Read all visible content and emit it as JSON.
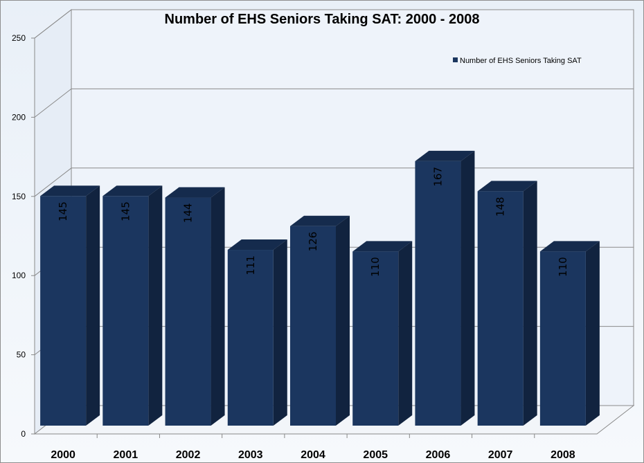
{
  "chart_data": {
    "type": "bar",
    "title": "Number of EHS Seniors Taking SAT: 2000 - 2008",
    "categories": [
      "2000",
      "2001",
      "2002",
      "2003",
      "2004",
      "2005",
      "2006",
      "2007",
      "2008"
    ],
    "series": [
      {
        "name": "Number of EHS Seniors Taking SAT",
        "values": [
          145,
          145,
          144,
          111,
          126,
          110,
          167,
          148,
          110
        ],
        "color": "#1b365f"
      }
    ],
    "data_labels": [
      "145",
      "145",
      "144",
      "111",
      "126",
      "110",
      "167",
      "148",
      "110"
    ],
    "yticks": [
      "0",
      "50",
      "100",
      "150",
      "200",
      "250"
    ],
    "ylim": [
      0,
      250
    ],
    "grid": true,
    "legend": "top-right",
    "style": "3d-column",
    "colors": {
      "bar_front": "#1b365f",
      "bar_side": "#11233f",
      "bar_top": "#152b4d",
      "gridline": "#8a8a8a"
    }
  }
}
